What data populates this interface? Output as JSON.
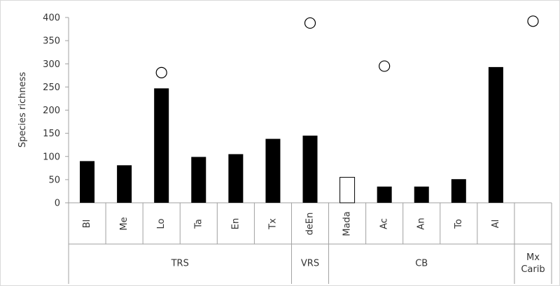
{
  "chart_data": {
    "type": "bar",
    "title": "",
    "xlabel": "",
    "ylabel": "Species richness",
    "ylim": [
      0,
      400
    ],
    "yticks": [
      0,
      50,
      100,
      150,
      200,
      250,
      300,
      350,
      400
    ],
    "grid": false,
    "legend": "none",
    "categories": [
      "Bl",
      "Me",
      "Lo",
      "Ta",
      "En",
      "Tx",
      "deEn",
      "Mada",
      "Ac",
      "An",
      "To",
      "Al",
      ""
    ],
    "groups": [
      {
        "label": "TRS",
        "span": 6
      },
      {
        "label": "VRS",
        "span": 1
      },
      {
        "label": "CB",
        "span": 5
      },
      {
        "label": "Mx\nCarib",
        "span": 1
      }
    ],
    "series": [
      {
        "values": [
          90,
          81,
          247,
          99,
          105,
          138,
          145,
          55,
          35,
          35,
          51,
          293,
          null
        ],
        "styles": [
          "filled",
          "filled",
          "filled",
          "filled",
          "filled",
          "filled",
          "filled",
          "open",
          "filled",
          "filled",
          "filled",
          "filled",
          "none"
        ]
      },
      {
        "marker": "open-circle",
        "values": [
          null,
          null,
          281,
          null,
          null,
          null,
          388,
          null,
          295,
          null,
          null,
          null,
          392
        ]
      }
    ],
    "colors": {
      "bar": "#000000",
      "open_bar_stroke": "#000000",
      "axis": "#a0a0a0",
      "marker_stroke": "#000000"
    }
  }
}
